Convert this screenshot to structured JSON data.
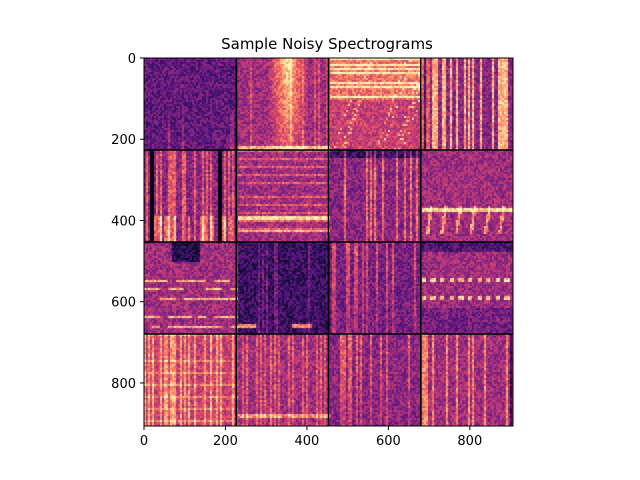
{
  "chart_data": {
    "type": "heatmap",
    "title": "Sample Noisy Spectrograms",
    "xlabel": "",
    "ylabel": "",
    "xlim": [
      0,
      906
    ],
    "ylim": [
      906,
      0
    ],
    "x_ticks": [
      0,
      200,
      400,
      600,
      800
    ],
    "y_ticks": [
      0,
      200,
      400,
      600,
      800
    ],
    "grid": {
      "rows": 4,
      "cols": 4,
      "tile_size": 226.5
    },
    "colormap": "magma",
    "grid_line_color": "#000000",
    "tiles": [
      {
        "row": 0,
        "col": 0,
        "base": 0.3,
        "texture": "noise-specks"
      },
      {
        "row": 0,
        "col": 1,
        "base": 0.45,
        "texture": "bright-blob"
      },
      {
        "row": 0,
        "col": 2,
        "base": 0.55,
        "texture": "bands-top"
      },
      {
        "row": 0,
        "col": 3,
        "base": 0.55,
        "texture": "vertical-stripes"
      },
      {
        "row": 1,
        "col": 0,
        "base": 0.4,
        "texture": "vertical-stripes-dark"
      },
      {
        "row": 1,
        "col": 1,
        "base": 0.45,
        "texture": "horizontal-lines"
      },
      {
        "row": 1,
        "col": 2,
        "base": 0.4,
        "texture": "vertical-lines"
      },
      {
        "row": 1,
        "col": 3,
        "base": 0.45,
        "texture": "arcs"
      },
      {
        "row": 2,
        "col": 0,
        "base": 0.45,
        "texture": "horizontal-dashes"
      },
      {
        "row": 2,
        "col": 1,
        "base": 0.2,
        "texture": "dark-noise"
      },
      {
        "row": 2,
        "col": 2,
        "base": 0.35,
        "texture": "vertical-streaks"
      },
      {
        "row": 2,
        "col": 3,
        "base": 0.45,
        "texture": "dotted-rows"
      },
      {
        "row": 3,
        "col": 0,
        "base": 0.55,
        "texture": "bright-verticals"
      },
      {
        "row": 3,
        "col": 1,
        "base": 0.45,
        "texture": "dense-verticals"
      },
      {
        "row": 3,
        "col": 2,
        "base": 0.4,
        "texture": "vertical-streaks"
      },
      {
        "row": 3,
        "col": 3,
        "base": 0.45,
        "texture": "fuzzy-verticals"
      }
    ]
  }
}
